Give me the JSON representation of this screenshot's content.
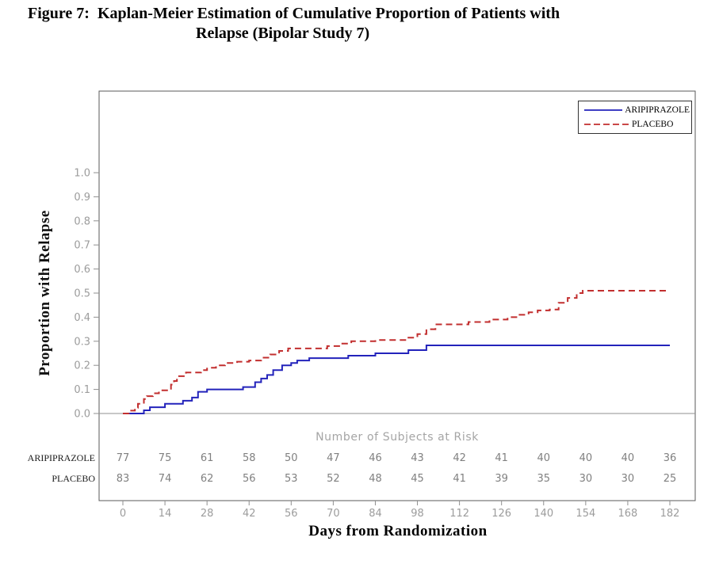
{
  "title": {
    "line1": "Figure 7:  Kaplan-Meier Estimation of Cumulative Proportion of Patients with",
    "line2": "Relapse (Bipolar Study 7)"
  },
  "chart_data": {
    "type": "line",
    "subtype": "kaplan-meier-step",
    "xlabel": "Days from Randomization",
    "ylabel": "Proportion with Relapse",
    "xlim": [
      0,
      182
    ],
    "ylim": [
      0.0,
      1.0
    ],
    "xticks": [
      0,
      14,
      28,
      42,
      56,
      70,
      84,
      98,
      112,
      126,
      140,
      154,
      168,
      182
    ],
    "yticks": [
      0.0,
      0.1,
      0.2,
      0.3,
      0.4,
      0.5,
      0.6,
      0.7,
      0.8,
      0.9,
      1.0
    ],
    "grid": false,
    "legend": {
      "position": "top-right",
      "entries": [
        "ARIPIPRAZOLE",
        "PLACEBO"
      ]
    },
    "series": [
      {
        "name": "ARIPIPRAZOLE",
        "color": "#2323bb",
        "line_style": "solid",
        "points": [
          [
            0,
            0
          ],
          [
            7,
            0.013
          ],
          [
            9,
            0.026
          ],
          [
            14,
            0.04
          ],
          [
            20,
            0.053
          ],
          [
            23,
            0.066
          ],
          [
            25,
            0.09
          ],
          [
            28,
            0.1
          ],
          [
            40,
            0.11
          ],
          [
            44,
            0.13
          ],
          [
            46,
            0.145
          ],
          [
            48,
            0.16
          ],
          [
            50,
            0.18
          ],
          [
            53,
            0.2
          ],
          [
            56,
            0.21
          ],
          [
            58,
            0.22
          ],
          [
            62,
            0.23
          ],
          [
            75,
            0.24
          ],
          [
            84,
            0.25
          ],
          [
            95,
            0.263
          ],
          [
            101,
            0.283
          ],
          [
            182,
            0.283
          ]
        ]
      },
      {
        "name": "PLACEBO",
        "color": "#c22f2f",
        "line_style": "dashed",
        "points": [
          [
            0,
            0
          ],
          [
            2,
            0.012
          ],
          [
            4,
            0.024
          ],
          [
            5,
            0.04
          ],
          [
            7,
            0.06
          ],
          [
            8,
            0.072
          ],
          [
            10,
            0.084
          ],
          [
            12,
            0.096
          ],
          [
            16,
            0.12
          ],
          [
            17,
            0.135
          ],
          [
            18,
            0.155
          ],
          [
            21,
            0.17
          ],
          [
            26,
            0.18
          ],
          [
            28,
            0.19
          ],
          [
            31,
            0.2
          ],
          [
            34,
            0.21
          ],
          [
            38,
            0.215
          ],
          [
            42,
            0.22
          ],
          [
            46,
            0.232
          ],
          [
            49,
            0.245
          ],
          [
            52,
            0.26
          ],
          [
            55,
            0.27
          ],
          [
            68,
            0.28
          ],
          [
            73,
            0.29
          ],
          [
            76,
            0.3
          ],
          [
            84,
            0.305
          ],
          [
            95,
            0.315
          ],
          [
            98,
            0.33
          ],
          [
            101,
            0.35
          ],
          [
            104,
            0.37
          ],
          [
            115,
            0.38
          ],
          [
            122,
            0.39
          ],
          [
            128,
            0.4
          ],
          [
            132,
            0.41
          ],
          [
            135,
            0.42
          ],
          [
            138,
            0.428
          ],
          [
            142,
            0.432
          ],
          [
            145,
            0.46
          ],
          [
            148,
            0.48
          ],
          [
            151,
            0.5
          ],
          [
            153,
            0.51
          ],
          [
            182,
            0.51
          ]
        ]
      }
    ],
    "at_risk": {
      "header": "Number of Subjects at Risk",
      "days": [
        0,
        14,
        28,
        42,
        56,
        70,
        84,
        98,
        112,
        126,
        140,
        154,
        168,
        182
      ],
      "rows": [
        {
          "label": "ARIPIPRAZOLE",
          "values": [
            77,
            75,
            61,
            58,
            50,
            47,
            46,
            43,
            42,
            41,
            40,
            40,
            40,
            36
          ]
        },
        {
          "label": "PLACEBO",
          "values": [
            83,
            74,
            62,
            56,
            53,
            52,
            48,
            45,
            41,
            39,
            35,
            30,
            30,
            25
          ]
        }
      ]
    },
    "colors": {
      "aripiprazole": "#2323bb",
      "placebo": "#c22f2f",
      "axis_text": "#9c9c9c",
      "risk_text": "#808080",
      "frame": "#5a5a5a",
      "tick": "#8f8f8f"
    }
  }
}
